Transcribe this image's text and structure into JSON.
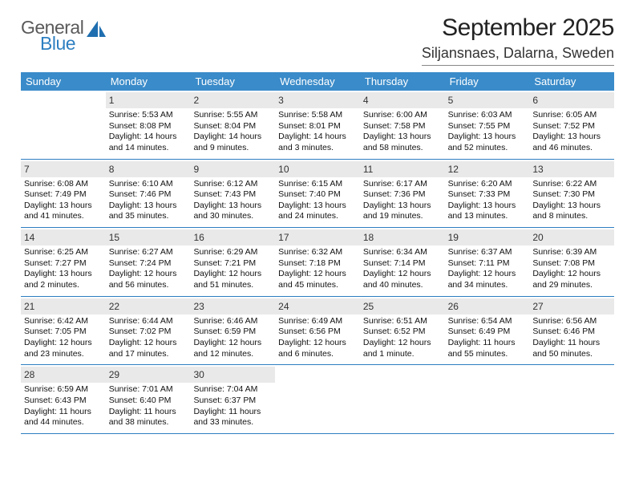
{
  "logo": {
    "general": "General",
    "blue": "Blue"
  },
  "title": "September 2025",
  "location": "Siljansnaes, Dalarna, Sweden",
  "colors": {
    "header_bg": "#3a8bc9",
    "border": "#2d7fc1",
    "daynum_bg": "#e9e9e9",
    "logo_gray": "#5a5a5a",
    "logo_blue": "#2d7fc1"
  },
  "day_headers": [
    "Sunday",
    "Monday",
    "Tuesday",
    "Wednesday",
    "Thursday",
    "Friday",
    "Saturday"
  ],
  "weeks": [
    [
      {
        "n": "",
        "sunrise": "",
        "sunset": "",
        "daylight": ""
      },
      {
        "n": "1",
        "sunrise": "Sunrise: 5:53 AM",
        "sunset": "Sunset: 8:08 PM",
        "daylight": "Daylight: 14 hours and 14 minutes."
      },
      {
        "n": "2",
        "sunrise": "Sunrise: 5:55 AM",
        "sunset": "Sunset: 8:04 PM",
        "daylight": "Daylight: 14 hours and 9 minutes."
      },
      {
        "n": "3",
        "sunrise": "Sunrise: 5:58 AM",
        "sunset": "Sunset: 8:01 PM",
        "daylight": "Daylight: 14 hours and 3 minutes."
      },
      {
        "n": "4",
        "sunrise": "Sunrise: 6:00 AM",
        "sunset": "Sunset: 7:58 PM",
        "daylight": "Daylight: 13 hours and 58 minutes."
      },
      {
        "n": "5",
        "sunrise": "Sunrise: 6:03 AM",
        "sunset": "Sunset: 7:55 PM",
        "daylight": "Daylight: 13 hours and 52 minutes."
      },
      {
        "n": "6",
        "sunrise": "Sunrise: 6:05 AM",
        "sunset": "Sunset: 7:52 PM",
        "daylight": "Daylight: 13 hours and 46 minutes."
      }
    ],
    [
      {
        "n": "7",
        "sunrise": "Sunrise: 6:08 AM",
        "sunset": "Sunset: 7:49 PM",
        "daylight": "Daylight: 13 hours and 41 minutes."
      },
      {
        "n": "8",
        "sunrise": "Sunrise: 6:10 AM",
        "sunset": "Sunset: 7:46 PM",
        "daylight": "Daylight: 13 hours and 35 minutes."
      },
      {
        "n": "9",
        "sunrise": "Sunrise: 6:12 AM",
        "sunset": "Sunset: 7:43 PM",
        "daylight": "Daylight: 13 hours and 30 minutes."
      },
      {
        "n": "10",
        "sunrise": "Sunrise: 6:15 AM",
        "sunset": "Sunset: 7:40 PM",
        "daylight": "Daylight: 13 hours and 24 minutes."
      },
      {
        "n": "11",
        "sunrise": "Sunrise: 6:17 AM",
        "sunset": "Sunset: 7:36 PM",
        "daylight": "Daylight: 13 hours and 19 minutes."
      },
      {
        "n": "12",
        "sunrise": "Sunrise: 6:20 AM",
        "sunset": "Sunset: 7:33 PM",
        "daylight": "Daylight: 13 hours and 13 minutes."
      },
      {
        "n": "13",
        "sunrise": "Sunrise: 6:22 AM",
        "sunset": "Sunset: 7:30 PM",
        "daylight": "Daylight: 13 hours and 8 minutes."
      }
    ],
    [
      {
        "n": "14",
        "sunrise": "Sunrise: 6:25 AM",
        "sunset": "Sunset: 7:27 PM",
        "daylight": "Daylight: 13 hours and 2 minutes."
      },
      {
        "n": "15",
        "sunrise": "Sunrise: 6:27 AM",
        "sunset": "Sunset: 7:24 PM",
        "daylight": "Daylight: 12 hours and 56 minutes."
      },
      {
        "n": "16",
        "sunrise": "Sunrise: 6:29 AM",
        "sunset": "Sunset: 7:21 PM",
        "daylight": "Daylight: 12 hours and 51 minutes."
      },
      {
        "n": "17",
        "sunrise": "Sunrise: 6:32 AM",
        "sunset": "Sunset: 7:18 PM",
        "daylight": "Daylight: 12 hours and 45 minutes."
      },
      {
        "n": "18",
        "sunrise": "Sunrise: 6:34 AM",
        "sunset": "Sunset: 7:14 PM",
        "daylight": "Daylight: 12 hours and 40 minutes."
      },
      {
        "n": "19",
        "sunrise": "Sunrise: 6:37 AM",
        "sunset": "Sunset: 7:11 PM",
        "daylight": "Daylight: 12 hours and 34 minutes."
      },
      {
        "n": "20",
        "sunrise": "Sunrise: 6:39 AM",
        "sunset": "Sunset: 7:08 PM",
        "daylight": "Daylight: 12 hours and 29 minutes."
      }
    ],
    [
      {
        "n": "21",
        "sunrise": "Sunrise: 6:42 AM",
        "sunset": "Sunset: 7:05 PM",
        "daylight": "Daylight: 12 hours and 23 minutes."
      },
      {
        "n": "22",
        "sunrise": "Sunrise: 6:44 AM",
        "sunset": "Sunset: 7:02 PM",
        "daylight": "Daylight: 12 hours and 17 minutes."
      },
      {
        "n": "23",
        "sunrise": "Sunrise: 6:46 AM",
        "sunset": "Sunset: 6:59 PM",
        "daylight": "Daylight: 12 hours and 12 minutes."
      },
      {
        "n": "24",
        "sunrise": "Sunrise: 6:49 AM",
        "sunset": "Sunset: 6:56 PM",
        "daylight": "Daylight: 12 hours and 6 minutes."
      },
      {
        "n": "25",
        "sunrise": "Sunrise: 6:51 AM",
        "sunset": "Sunset: 6:52 PM",
        "daylight": "Daylight: 12 hours and 1 minute."
      },
      {
        "n": "26",
        "sunrise": "Sunrise: 6:54 AM",
        "sunset": "Sunset: 6:49 PM",
        "daylight": "Daylight: 11 hours and 55 minutes."
      },
      {
        "n": "27",
        "sunrise": "Sunrise: 6:56 AM",
        "sunset": "Sunset: 6:46 PM",
        "daylight": "Daylight: 11 hours and 50 minutes."
      }
    ],
    [
      {
        "n": "28",
        "sunrise": "Sunrise: 6:59 AM",
        "sunset": "Sunset: 6:43 PM",
        "daylight": "Daylight: 11 hours and 44 minutes."
      },
      {
        "n": "29",
        "sunrise": "Sunrise: 7:01 AM",
        "sunset": "Sunset: 6:40 PM",
        "daylight": "Daylight: 11 hours and 38 minutes."
      },
      {
        "n": "30",
        "sunrise": "Sunrise: 7:04 AM",
        "sunset": "Sunset: 6:37 PM",
        "daylight": "Daylight: 11 hours and 33 minutes."
      },
      {
        "n": "",
        "sunrise": "",
        "sunset": "",
        "daylight": ""
      },
      {
        "n": "",
        "sunrise": "",
        "sunset": "",
        "daylight": ""
      },
      {
        "n": "",
        "sunrise": "",
        "sunset": "",
        "daylight": ""
      },
      {
        "n": "",
        "sunrise": "",
        "sunset": "",
        "daylight": ""
      }
    ]
  ]
}
